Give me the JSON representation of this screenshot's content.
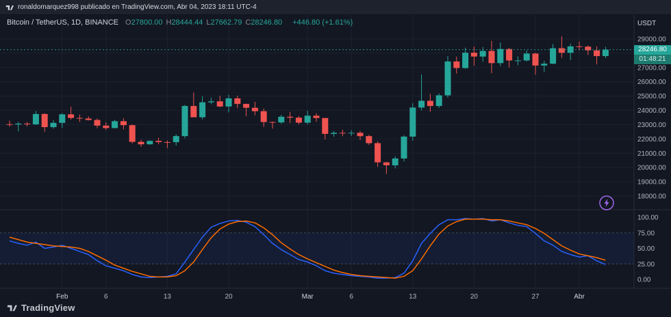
{
  "topbar": {
    "text": "ronaldomarquez998 publicado en TradingView.com, Abr 04, 2023 18:11 UTC-4"
  },
  "legend": {
    "title": "Bitcoin / TetherUS, 1D, BINANCE",
    "o_label": "O",
    "o": "27800.00",
    "h_label": "H",
    "h": "28444.44",
    "l_label": "L",
    "l": "27662.79",
    "c_label": "C",
    "c": "28246.80",
    "change": "+446.80 (+1.61%)"
  },
  "price_badge": {
    "price": "28246.80",
    "countdown": "01:48:21"
  },
  "footer": {
    "brand": "TradingView"
  },
  "icons": {
    "topbar": "tradingview-mark",
    "footer": "tradingview-logo",
    "overlay": "lightning-boost-circle"
  },
  "colors": {
    "background": "#131722",
    "up": "#26a69a",
    "down": "#ef5350",
    "grid": "#1c2130",
    "separator": "#2a2e39",
    "axis_text": "#b2b5be",
    "k_line": "#2962ff",
    "d_line": "#ff6d00",
    "band_fill": "rgba(41,98,255,0.08)",
    "band_line": "#4c5366",
    "badge": "#26a69a",
    "boost": "#a067e8"
  },
  "chart_data": {
    "type": "candlestick",
    "title": "Bitcoin / TetherUS, 1D, BINANCE",
    "exchange": "BINANCE",
    "interval": "1D",
    "last_price": 28246.8,
    "price_axis": {
      "currency": "USDT",
      "range": [
        18000,
        29500
      ],
      "ticks": [
        {
          "v": 29000,
          "label": "29000.00"
        },
        {
          "v": 28000,
          "label": "28000.00"
        },
        {
          "v": 27000,
          "label": "27000.00"
        },
        {
          "v": 26000,
          "label": "26000.00"
        },
        {
          "v": 25000,
          "label": "25000.00"
        },
        {
          "v": 24000,
          "label": "24000.00"
        },
        {
          "v": 23000,
          "label": "23000.00"
        },
        {
          "v": 22000,
          "label": "22000.00"
        },
        {
          "v": 21000,
          "label": "21000.00"
        },
        {
          "v": 20000,
          "label": "20000.00"
        },
        {
          "v": 19000,
          "label": "19000.00"
        },
        {
          "v": 18000,
          "label": "18000.00"
        }
      ]
    },
    "x_axis": {
      "ticks": [
        {
          "i": 6,
          "label": "Feb",
          "month": true
        },
        {
          "i": 11,
          "label": "6",
          "month": false
        },
        {
          "i": 18,
          "label": "13",
          "month": false
        },
        {
          "i": 25,
          "label": "20",
          "month": false
        },
        {
          "i": 34,
          "label": "Mar",
          "month": true
        },
        {
          "i": 39,
          "label": "6",
          "month": false
        },
        {
          "i": 46,
          "label": "13",
          "month": false
        },
        {
          "i": 53,
          "label": "20",
          "month": false
        },
        {
          "i": 60,
          "label": "27",
          "month": false
        },
        {
          "i": 65,
          "label": "Abr",
          "month": true
        }
      ]
    },
    "dates": [
      "Jan 26",
      "Jan 27",
      "Jan 28",
      "Jan 29",
      "Jan 30",
      "Jan 31",
      "Feb 1",
      "Feb 2",
      "Feb 3",
      "Feb 4",
      "Feb 5",
      "Feb 6",
      "Feb 7",
      "Feb 8",
      "Feb 9",
      "Feb 10",
      "Feb 11",
      "Feb 12",
      "Feb 13",
      "Feb 14",
      "Feb 15",
      "Feb 16",
      "Feb 17",
      "Feb 18",
      "Feb 19",
      "Feb 20",
      "Feb 21",
      "Feb 22",
      "Feb 23",
      "Feb 24",
      "Feb 25",
      "Feb 26",
      "Feb 27",
      "Feb 28",
      "Mar 1",
      "Mar 2",
      "Mar 3",
      "Mar 4",
      "Mar 5",
      "Mar 6",
      "Mar 7",
      "Mar 8",
      "Mar 9",
      "Mar 10",
      "Mar 11",
      "Mar 12",
      "Mar 13",
      "Mar 14",
      "Mar 15",
      "Mar 16",
      "Mar 17",
      "Mar 18",
      "Mar 19",
      "Mar 20",
      "Mar 21",
      "Mar 22",
      "Mar 23",
      "Mar 24",
      "Mar 25",
      "Mar 26",
      "Mar 27",
      "Mar 28",
      "Mar 29",
      "Mar 30",
      "Mar 31",
      "Apr 1",
      "Apr 2",
      "Apr 3",
      "Apr 4"
    ],
    "ohlc": [
      [
        23032,
        23282,
        22860,
        23011
      ],
      [
        23011,
        23189,
        22534,
        23074
      ],
      [
        23074,
        23174,
        22880,
        23022
      ],
      [
        23022,
        23960,
        22975,
        23745
      ],
      [
        23745,
        23800,
        22500,
        22827
      ],
      [
        22827,
        23320,
        22714,
        23125
      ],
      [
        23125,
        23810,
        22760,
        23723
      ],
      [
        23723,
        24255,
        23360,
        23471
      ],
      [
        23471,
        23710,
        23190,
        23431
      ],
      [
        23431,
        23588,
        23291,
        23327
      ],
      [
        23327,
        23433,
        22760,
        22932
      ],
      [
        22932,
        23157,
        22628,
        22760
      ],
      [
        22760,
        23340,
        22745,
        23243
      ],
      [
        23243,
        23452,
        22670,
        22963
      ],
      [
        22963,
        23011,
        21688,
        21796
      ],
      [
        21796,
        21938,
        21451,
        21625
      ],
      [
        21625,
        21906,
        21600,
        21862
      ],
      [
        21862,
        22090,
        21630,
        21781
      ],
      [
        21781,
        21894,
        21351,
        21774
      ],
      [
        21774,
        22319,
        21532,
        22199
      ],
      [
        22199,
        24380,
        22047,
        24307
      ],
      [
        24307,
        25250,
        23550,
        23517
      ],
      [
        23517,
        24985,
        23368,
        24565
      ],
      [
        24565,
        24877,
        24430,
        24632
      ],
      [
        24632,
        25022,
        24230,
        24271
      ],
      [
        24271,
        25090,
        23857,
        24840
      ],
      [
        24840,
        25030,
        24155,
        24452
      ],
      [
        24452,
        24474,
        23583,
        24182
      ],
      [
        24182,
        24600,
        23660,
        23940
      ],
      [
        23940,
        24132,
        22841,
        23185
      ],
      [
        23185,
        23219,
        22722,
        23157
      ],
      [
        23157,
        23689,
        23065,
        23554
      ],
      [
        23554,
        23896,
        23110,
        23490
      ],
      [
        23490,
        23605,
        23020,
        23141
      ],
      [
        23141,
        23980,
        23021,
        23628
      ],
      [
        23628,
        23796,
        23205,
        23465
      ],
      [
        23465,
        23476,
        21971,
        22354
      ],
      [
        22354,
        22560,
        22157,
        22430
      ],
      [
        22430,
        22644,
        22189,
        22410
      ],
      [
        22410,
        22602,
        22208,
        22429
      ],
      [
        22429,
        22557,
        21927,
        22197
      ],
      [
        22197,
        22280,
        21580,
        21705
      ],
      [
        21705,
        21835,
        20050,
        20363
      ],
      [
        20363,
        20370,
        19549,
        20155
      ],
      [
        20155,
        20792,
        19941,
        20632
      ],
      [
        20632,
        22250,
        20419,
        22163
      ],
      [
        22163,
        24500,
        21876,
        24197
      ],
      [
        24197,
        26514,
        24000,
        24670
      ],
      [
        24670,
        25167,
        23910,
        24307
      ],
      [
        24307,
        25190,
        24170,
        25052
      ],
      [
        25052,
        27800,
        24890,
        27423
      ],
      [
        27423,
        27760,
        26578,
        26965
      ],
      [
        26965,
        28390,
        26900,
        28038
      ],
      [
        28038,
        28472,
        27124,
        27767
      ],
      [
        27767,
        28438,
        27400,
        28160
      ],
      [
        28160,
        28868,
        26601,
        27307
      ],
      [
        27307,
        28750,
        27105,
        28295
      ],
      [
        28295,
        28374,
        27000,
        27493
      ],
      [
        27493,
        27787,
        27156,
        27494
      ],
      [
        27494,
        28194,
        27424,
        27978
      ],
      [
        27978,
        28023,
        26508,
        27139
      ],
      [
        27139,
        27470,
        26676,
        27268
      ],
      [
        27268,
        28641,
        27236,
        28351
      ],
      [
        28351,
        29184,
        27678,
        28033
      ],
      [
        28033,
        28650,
        27512,
        28478
      ],
      [
        28478,
        28810,
        28201,
        28461
      ],
      [
        28461,
        28540,
        27880,
        28199
      ],
      [
        28199,
        28480,
        27216,
        27800
      ],
      [
        27800,
        28444.44,
        27662.79,
        28246.8
      ]
    ],
    "indicator": {
      "name": "Stochastic",
      "range": [
        0,
        100
      ],
      "bands": [
        25,
        75
      ],
      "ticks": [
        {
          "v": 100,
          "label": "100.00"
        },
        {
          "v": 75,
          "label": "75.00"
        },
        {
          "v": 50,
          "label": "50.00"
        },
        {
          "v": 25,
          "label": "25.00"
        },
        {
          "v": 0,
          "label": "0.00"
        }
      ],
      "k": [
        62,
        58,
        55,
        60,
        50,
        52,
        55,
        50,
        45,
        40,
        30,
        22,
        18,
        14,
        8,
        4,
        3,
        4,
        5,
        9,
        28,
        48,
        68,
        84,
        90,
        94,
        95,
        92,
        85,
        72,
        58,
        48,
        40,
        32,
        28,
        22,
        14,
        10,
        8,
        6,
        5,
        4,
        2,
        2,
        3,
        10,
        30,
        58,
        74,
        88,
        96,
        96,
        98,
        97,
        98,
        94,
        96,
        91,
        87,
        85,
        74,
        62,
        55,
        45,
        40,
        36,
        38,
        30,
        24
      ],
      "d": [
        68,
        64,
        60,
        58,
        56,
        54,
        53,
        52,
        50,
        45,
        38,
        31,
        23,
        18,
        13,
        9,
        5,
        4,
        4,
        6,
        14,
        28,
        48,
        67,
        81,
        89,
        93,
        94,
        91,
        83,
        72,
        59,
        49,
        40,
        33,
        27,
        21,
        15,
        11,
        8,
        6,
        5,
        4,
        3,
        2,
        5,
        14,
        33,
        54,
        73,
        86,
        93,
        97,
        97,
        97,
        96,
        96,
        94,
        91,
        88,
        82,
        74,
        64,
        54,
        47,
        41,
        38,
        35,
        31
      ]
    }
  }
}
